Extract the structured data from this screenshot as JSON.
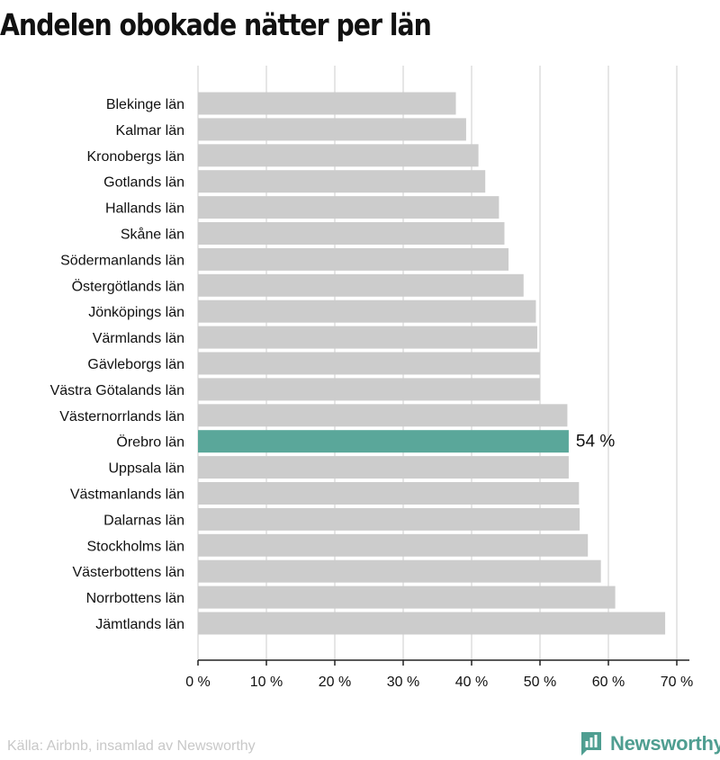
{
  "title": "Andelen obokade nätter per län",
  "source": "Källa: Airbnb, insamlad av Newsworthy",
  "brand": {
    "name": "Newsworthy",
    "logo_icon": "newsworthy-logo-icon"
  },
  "colors": {
    "bar": "#cccccc",
    "highlight": "#5aa79a",
    "grid": "#dddddd",
    "axis": "#222222",
    "brand": "#4f9e91"
  },
  "chart_data": {
    "type": "bar",
    "orientation": "horizontal",
    "title": "Andelen obokade nätter per län",
    "xlim": [
      0,
      70
    ],
    "x_ticks": [
      0,
      10,
      20,
      30,
      40,
      50,
      60,
      70
    ],
    "x_tick_labels": [
      "0 %",
      "10 %",
      "20 %",
      "30 %",
      "40 %",
      "50 %",
      "60 %",
      "70 %"
    ],
    "grid": true,
    "categories": [
      "Blekinge län",
      "Kalmar län",
      "Kronobergs län",
      "Gotlands län",
      "Hallands län",
      "Skåne län",
      "Södermanlands län",
      "Östergötlands län",
      "Jönköpings län",
      "Värmlands län",
      "Gävleborgs län",
      "Västra Götalands län",
      "Västernorrlands län",
      "Örebro län",
      "Uppsala län",
      "Västmanlands län",
      "Dalarnas län",
      "Stockholms län",
      "Västerbottens län",
      "Norrbottens län",
      "Jämtlands län"
    ],
    "values": [
      37.7,
      39.2,
      41.0,
      42.0,
      44.0,
      44.8,
      45.4,
      47.6,
      49.4,
      49.6,
      50.0,
      50.0,
      54.0,
      54.2,
      54.2,
      55.7,
      55.8,
      57.0,
      58.9,
      61.0,
      68.3
    ],
    "highlight_index": 13,
    "highlight_label": "54 %"
  }
}
